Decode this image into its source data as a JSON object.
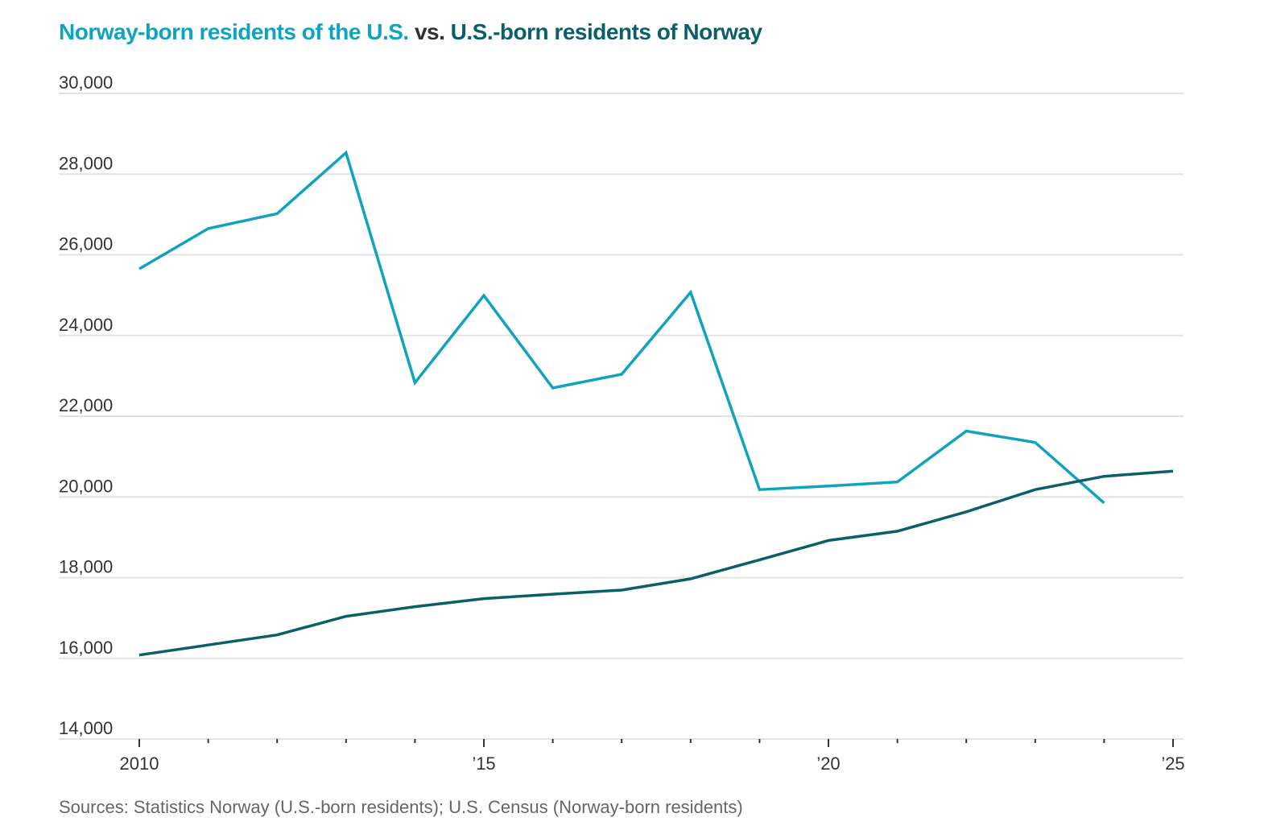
{
  "chart_data": {
    "type": "line",
    "title_parts": {
      "series1": "Norway-born residents of the U.S.",
      "connector": " vs. ",
      "series2": "U.S.-born residents of Norway"
    },
    "xlabel": "",
    "ylabel": "",
    "ylim": [
      14000,
      30000
    ],
    "xlim": [
      2010,
      2025
    ],
    "yticks": [
      {
        "value": 30000,
        "label": "30,000"
      },
      {
        "value": 28000,
        "label": "28,000"
      },
      {
        "value": 26000,
        "label": "26,000"
      },
      {
        "value": 24000,
        "label": "24,000"
      },
      {
        "value": 22000,
        "label": "22,000"
      },
      {
        "value": 20000,
        "label": "20,000"
      },
      {
        "value": 18000,
        "label": "18,000"
      },
      {
        "value": 16000,
        "label": "16,000"
      },
      {
        "value": 14000,
        "label": "14,000"
      }
    ],
    "xticks_minor": [
      2010,
      2011,
      2012,
      2013,
      2014,
      2015,
      2016,
      2017,
      2018,
      2019,
      2020,
      2021,
      2022,
      2023,
      2024,
      2025
    ],
    "xticks_labeled": [
      {
        "value": 2010,
        "label": "2010"
      },
      {
        "value": 2015,
        "label": "’15"
      },
      {
        "value": 2020,
        "label": "’20"
      },
      {
        "value": 2025,
        "label": "’25"
      }
    ],
    "grid": true,
    "legend": "none (series identified by colored title text)",
    "series": [
      {
        "name": "Norway-born residents of the U.S.",
        "color": "#11a3be",
        "x": [
          2010,
          2011,
          2012,
          2013,
          2014,
          2015,
          2016,
          2017,
          2018,
          2019,
          2020,
          2021,
          2022,
          2023,
          2024
        ],
        "values": [
          25650,
          26650,
          27020,
          28530,
          22830,
          24990,
          22700,
          23040,
          25070,
          20180,
          20270,
          20370,
          21630,
          21350,
          19850
        ]
      },
      {
        "name": "U.S.-born residents of Norway",
        "color": "#0b5f68",
        "x": [
          2010,
          2011,
          2012,
          2013,
          2014,
          2015,
          2016,
          2017,
          2018,
          2019,
          2020,
          2021,
          2022,
          2023,
          2024,
          2025
        ],
        "values": [
          16080,
          16330,
          16580,
          17040,
          17280,
          17480,
          17590,
          17690,
          17970,
          18440,
          18920,
          19150,
          19630,
          20180,
          20510,
          20640
        ]
      }
    ],
    "source": "Sources: Statistics Norway (U.S.-born residents); U.S. Census (Norway-born residents)"
  },
  "colors": {
    "series1": "#11a3be",
    "series2": "#0b5f68",
    "connector": "#333333",
    "grid": "#e3e3e3",
    "axis_text": "#333333",
    "source_text": "#666666"
  }
}
